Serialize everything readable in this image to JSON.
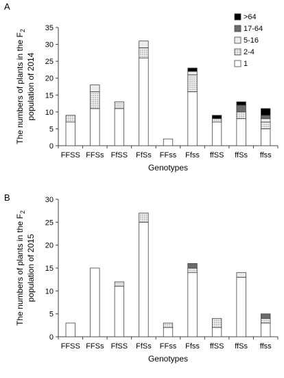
{
  "colors": {
    "seg1": "#ffffff",
    "seg2_4": "#d9d9d9",
    "seg5_16": "#ececec",
    "seg17_64": "#6b6b6b",
    "seg64": "#000000",
    "stroke": "#404040"
  },
  "chart_data": [
    {
      "panel": "A",
      "type": "bar",
      "stacked": true,
      "categories": [
        "FFSS",
        "FFSs",
        "FfSS",
        "FfSs",
        "FFss",
        "Ffss",
        "ffSS",
        "ffSs",
        "ffss"
      ],
      "xlabel": "Genotypes",
      "ylabel_line1": "The numbers of  plants in the F",
      "ylabel_sub": "2",
      "ylabel_line2": "population of 2014",
      "ylim": [
        0,
        35
      ],
      "yticks": [
        0,
        5,
        10,
        15,
        20,
        25,
        30,
        35
      ],
      "legend_position": "top-right",
      "series": [
        {
          "name": "1",
          "color_key": "seg1",
          "values": [
            7,
            11,
            11,
            26,
            2,
            16,
            7,
            8,
            5
          ]
        },
        {
          "name": "2-4",
          "color_key": "seg2_4",
          "values": [
            2,
            5,
            2,
            3,
            0,
            5,
            1,
            2,
            2
          ]
        },
        {
          "name": "5-16",
          "color_key": "seg5_16",
          "values": [
            0,
            2,
            0,
            2,
            0,
            1,
            0,
            0,
            1
          ]
        },
        {
          "name": "17-64",
          "color_key": "seg17_64",
          "values": [
            0,
            0,
            0,
            0,
            0,
            0,
            0,
            2,
            1
          ]
        },
        {
          "name": ">64",
          "color_key": "seg64",
          "values": [
            0,
            0,
            0,
            0,
            0,
            1,
            1,
            1,
            2
          ]
        }
      ]
    },
    {
      "panel": "B",
      "type": "bar",
      "stacked": true,
      "categories": [
        "FFSS",
        "FFSs",
        "FfSS",
        "FfSs",
        "FFss",
        "Ffss",
        "ffSS",
        "ffSs",
        "ffss"
      ],
      "xlabel": "Genotypes",
      "ylabel_line1": "The numbers of  plants in the F",
      "ylabel_sub": "2",
      "ylabel_line2": "population of 2015",
      "ylim": [
        0,
        30
      ],
      "yticks": [
        0,
        5,
        10,
        15,
        20,
        25,
        30
      ],
      "series": [
        {
          "color_key": "seg1",
          "values": [
            3,
            15,
            11,
            25,
            2,
            14,
            2,
            13,
            3
          ]
        },
        {
          "color_key": "seg2_4",
          "values": [
            0,
            0,
            1,
            2,
            1,
            1,
            2,
            0,
            1
          ]
        },
        {
          "color_key": "seg5_16",
          "values": [
            0,
            0,
            0,
            0,
            0,
            0,
            0,
            1,
            0
          ]
        },
        {
          "color_key": "seg17_64",
          "values": [
            0,
            0,
            0,
            0,
            0,
            1,
            0,
            0,
            1
          ]
        },
        {
          "color_key": "seg64",
          "values": [
            0,
            0,
            0,
            0,
            0,
            0,
            0,
            0,
            0
          ]
        }
      ]
    }
  ]
}
